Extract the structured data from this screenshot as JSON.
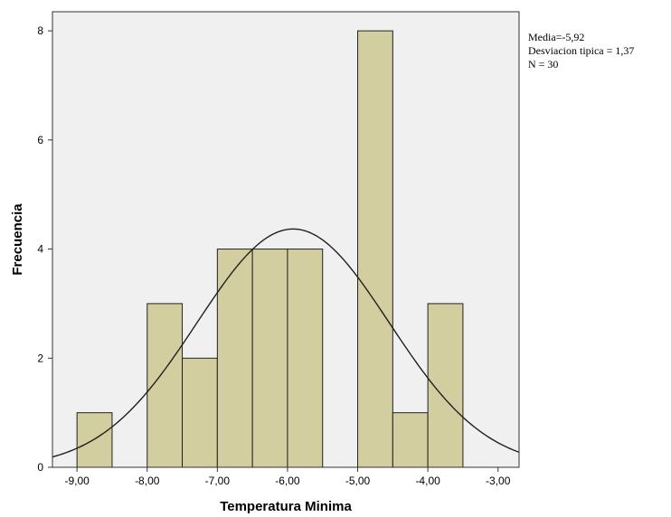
{
  "chart_data": {
    "type": "bar",
    "subtype": "histogram",
    "xlabel": "Temperatura Minima",
    "ylabel": "Frecuencia",
    "xlim": [
      -9.35,
      -2.7
    ],
    "ylim": [
      0,
      8.35
    ],
    "x_ticks": [
      -9,
      -8,
      -7,
      -6,
      -5,
      -4,
      -3
    ],
    "x_tick_labels": [
      "-9,00",
      "-8,00",
      "-7,00",
      "-6,00",
      "-5,00",
      "-4,00",
      "-3,00"
    ],
    "y_ticks": [
      0,
      2,
      4,
      6,
      8
    ],
    "y_tick_labels": [
      "0",
      "2",
      "4",
      "6",
      "8"
    ],
    "bin_width": 0.5,
    "bins": [
      {
        "start": -9.0,
        "end": -8.5,
        "count": 1
      },
      {
        "start": -8.5,
        "end": -8.0,
        "count": 0
      },
      {
        "start": -8.0,
        "end": -7.5,
        "count": 3
      },
      {
        "start": -7.5,
        "end": -7.0,
        "count": 2
      },
      {
        "start": -7.0,
        "end": -6.5,
        "count": 4
      },
      {
        "start": -6.5,
        "end": -6.0,
        "count": 4
      },
      {
        "start": -6.0,
        "end": -5.5,
        "count": 4
      },
      {
        "start": -5.5,
        "end": -5.0,
        "count": 0
      },
      {
        "start": -5.0,
        "end": -4.5,
        "count": 8
      },
      {
        "start": -4.5,
        "end": -4.0,
        "count": 1
      },
      {
        "start": -4.0,
        "end": -3.5,
        "count": 3
      }
    ],
    "normal_curve": {
      "mean": -5.92,
      "sd": 1.37,
      "n": 30
    },
    "stats": [
      "Media=-5,92",
      "Desviacion tipica = 1,37",
      "N = 30"
    ],
    "grid": false,
    "colors": {
      "plot_background": "#f0f0f0",
      "bar_fill": "#d3cea0",
      "bar_stroke": "#202020",
      "curve": "#202020"
    }
  }
}
